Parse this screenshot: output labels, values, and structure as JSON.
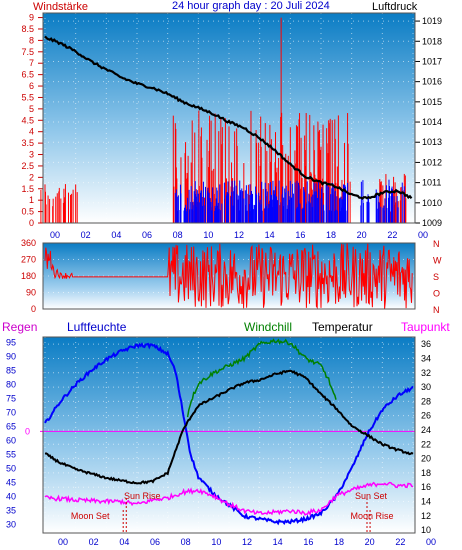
{
  "header": {
    "left_label": "Windstärke",
    "title": "24 hour graph day : 20 Juli 2024",
    "right_label": "Luftdruck"
  },
  "colors": {
    "wind_speed": "#ff0000",
    "wind_gust": "#0000ff",
    "pressure": "#000000",
    "wind_dir": "#ff0000",
    "humidity": "#0000ff",
    "windchill": "#008000",
    "temperature": "#000000",
    "dewpoint": "#ff00ff",
    "rain": "#ff00ff",
    "sun_moon": "#cc0000"
  },
  "chart_data": [
    {
      "type": "bar",
      "name": "wind_and_pressure",
      "x_ticks": [
        "00",
        "02",
        "04",
        "06",
        "08",
        "10",
        "12",
        "14",
        "16",
        "18",
        "20",
        "22",
        "00"
      ],
      "left_axis": {
        "label": "Windstärke",
        "ticks": [
          "0",
          "0.5",
          "1",
          "1.5",
          "2",
          "2.5",
          "3",
          "3.5",
          "4",
          "4.5",
          "5",
          "5.5",
          "6",
          "6.5",
          "7",
          "7.5",
          "8",
          "8.5",
          "9"
        ],
        "ylim": [
          0,
          9.2
        ]
      },
      "right_axis": {
        "label": "Luftdruck",
        "ticks": [
          "1009",
          "1010",
          "1011",
          "1012",
          "1013",
          "1014",
          "1015",
          "1016",
          "1017",
          "1018",
          "1019"
        ],
        "ylim": [
          1009,
          1019.4
        ]
      },
      "pressure_series": {
        "hours": [
          0,
          1,
          2,
          3,
          4,
          5,
          6,
          7,
          8,
          9,
          10,
          11,
          12,
          13,
          14,
          15,
          16,
          17,
          18,
          19,
          20,
          21,
          22,
          23,
          24
        ],
        "values": [
          1018.2,
          1017.9,
          1017.5,
          1017.0,
          1016.6,
          1016.2,
          1015.9,
          1015.7,
          1015.4,
          1015.0,
          1014.7,
          1014.4,
          1014.0,
          1013.7,
          1013.2,
          1012.6,
          1011.9,
          1011.3,
          1011.0,
          1010.8,
          1010.4,
          1010.2,
          1010.5,
          1010.6,
          1010.2
        ]
      },
      "wind_gust_max": 9.0,
      "wind_gust_max_hour": 15.4
    },
    {
      "type": "line",
      "name": "wind_direction",
      "left_ticks": [
        "0",
        "90",
        "180",
        "270",
        "360"
      ],
      "right_labels": [
        "N",
        "W",
        "S",
        "O",
        "N"
      ],
      "ylim": [
        0,
        360
      ]
    },
    {
      "type": "line",
      "name": "climate",
      "labels": {
        "rain": "Regen",
        "humidity": "Luftfeuchte",
        "windchill": "Windchill",
        "temperature": "Temperatur",
        "dewpoint": "Taupunkt"
      },
      "x_ticks": [
        "00",
        "02",
        "04",
        "06",
        "08",
        "10",
        "12",
        "14",
        "16",
        "18",
        "20",
        "22",
        "00"
      ],
      "left_axis": {
        "ticks": [
          "30",
          "35",
          "40",
          "45",
          "50",
          "55",
          "60",
          "65",
          "70",
          "75",
          "80",
          "85",
          "90",
          "95"
        ],
        "ylim": [
          27,
          97
        ]
      },
      "right_axis": {
        "ticks": [
          "10",
          "12",
          "14",
          "16",
          "18",
          "20",
          "22",
          "24",
          "26",
          "28",
          "30",
          "32",
          "34",
          "36"
        ],
        "ylim": [
          9.6,
          37
        ]
      },
      "rain_marker": "0",
      "series": [
        {
          "name": "Luftfeuchte",
          "hours": [
            0,
            1,
            2,
            3,
            4,
            5,
            6,
            7,
            8,
            8.5,
            9,
            9.5,
            10,
            11,
            12,
            13,
            14,
            15,
            16,
            17,
            18,
            19,
            20,
            21,
            22,
            23,
            24
          ],
          "values": [
            66,
            74,
            80,
            85,
            89,
            92,
            94,
            94,
            91,
            85,
            70,
            55,
            47,
            41,
            37,
            33,
            32,
            31,
            31,
            32,
            34,
            40,
            50,
            62,
            71,
            76,
            79
          ]
        },
        {
          "name": "Temperatur",
          "hours": [
            0,
            1,
            2,
            3,
            4,
            5,
            6,
            7,
            8,
            8.5,
            9,
            9.5,
            10,
            11,
            12,
            13,
            14,
            15,
            16,
            17,
            18,
            19,
            20,
            21,
            22,
            23,
            24
          ],
          "values": [
            20.7,
            19.4,
            18.5,
            17.9,
            17.3,
            16.9,
            16.6,
            16.8,
            18.0,
            21.0,
            24.0,
            25.8,
            27.4,
            28.5,
            29.6,
            30.6,
            31.0,
            31.8,
            32.3,
            31.3,
            29.0,
            27.0,
            24.6,
            23.3,
            22.0,
            21.2,
            20.6
          ]
        },
        {
          "name": "Windchill",
          "hours": [
            9.3,
            9.5,
            10,
            11,
            12,
            13,
            14,
            15,
            16,
            17,
            18,
            18.5,
            19
          ],
          "values": [
            26.0,
            28.0,
            30.5,
            32.0,
            33.0,
            34.0,
            36.0,
            36.5,
            36.2,
            34.0,
            33.0,
            31.0,
            28.0
          ]
        },
        {
          "name": "Taupunkt",
          "hours": [
            0,
            1,
            2,
            3,
            4,
            5,
            6,
            7,
            8,
            9,
            10,
            11,
            12,
            13,
            14,
            15,
            16,
            17,
            18,
            19,
            20,
            21,
            22,
            23,
            24
          ],
          "values": [
            14.5,
            14.4,
            14.2,
            14.1,
            14.0,
            14.0,
            13.6,
            14.2,
            14.5,
            15.3,
            15.6,
            14.8,
            13.6,
            12.7,
            12.3,
            12.5,
            12.7,
            12.4,
            12.8,
            14.8,
            15.6,
            16.2,
            16.6,
            16.2,
            16.3
          ]
        }
      ],
      "sun_rise": {
        "label": "Sun Rise",
        "hour": 5.3
      },
      "sun_set": {
        "label": "Sun Set",
        "hour": 21.0
      },
      "moon_set": {
        "label": "Moon Set",
        "hour": 5.1
      },
      "moon_rise": {
        "label": "Moon Rise",
        "hour": 21.2
      }
    }
  ]
}
